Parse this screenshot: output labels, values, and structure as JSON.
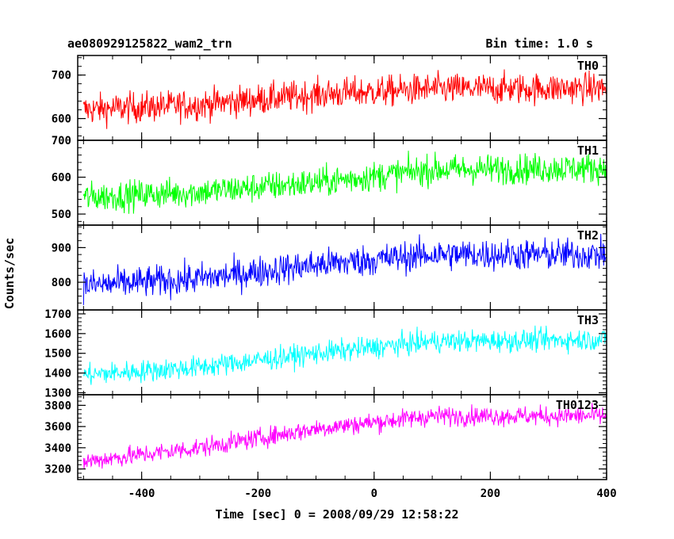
{
  "header": {
    "title": "ae080929125822_wam2_trn",
    "bin_time": "Bin time: 1.0 s"
  },
  "chart_data": {
    "type": "line",
    "title": "ae080929125822_wam2_trn",
    "xlabel": "Time [sec] 0 = 2008/09/29 12:58:22",
    "ylabel": "Counts/sec",
    "xlim": [
      -510,
      400
    ],
    "xticks": [
      -400,
      -200,
      0,
      200,
      400
    ],
    "x_start": -500,
    "x_end": 399,
    "x_step": 1,
    "grid": false,
    "panels": [
      {
        "name": "TH0",
        "color": "#ff0000",
        "ylim": [
          550,
          745
        ],
        "yticks": [
          600,
          700
        ],
        "trend": [
          [
            -500,
            620
          ],
          [
            -300,
            632
          ],
          [
            -100,
            655
          ],
          [
            100,
            668
          ],
          [
            400,
            670
          ]
        ],
        "noise_amplitude": 35
      },
      {
        "name": "TH1",
        "color": "#00ff00",
        "ylim": [
          470,
          700
        ],
        "yticks": [
          500,
          600,
          700
        ],
        "trend": [
          [
            -500,
            545
          ],
          [
            -300,
            560
          ],
          [
            -100,
            585
          ],
          [
            100,
            620
          ],
          [
            400,
            625
          ]
        ],
        "noise_amplitude": 40
      },
      {
        "name": "TH2",
        "color": "#0000ff",
        "ylim": [
          720,
          965
        ],
        "yticks": [
          800,
          900
        ],
        "trend": [
          [
            -500,
            790
          ],
          [
            -300,
            810
          ],
          [
            -100,
            850
          ],
          [
            100,
            880
          ],
          [
            400,
            880
          ]
        ],
        "noise_amplitude": 45
      },
      {
        "name": "TH3",
        "color": "#00ffff",
        "ylim": [
          1290,
          1720
        ],
        "yticks": [
          1300,
          1400,
          1500,
          1600,
          1700
        ],
        "trend": [
          [
            -500,
            1390
          ],
          [
            -300,
            1430
          ],
          [
            -100,
            1500
          ],
          [
            100,
            1560
          ],
          [
            400,
            1570
          ]
        ],
        "noise_amplitude": 55
      },
      {
        "name": "TH0123",
        "color": "#ff00ff",
        "ylim": [
          3100,
          3900
        ],
        "yticks": [
          3200,
          3400,
          3600,
          3800
        ],
        "trend": [
          [
            -500,
            3270
          ],
          [
            -300,
            3400
          ],
          [
            -100,
            3580
          ],
          [
            100,
            3700
          ],
          [
            400,
            3700
          ]
        ],
        "noise_amplitude": 90
      }
    ]
  }
}
